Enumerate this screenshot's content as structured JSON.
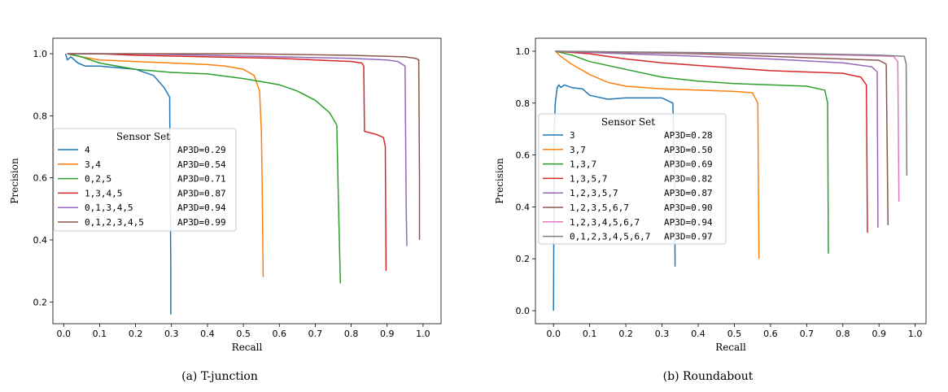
{
  "chart_data": [
    {
      "type": "line",
      "caption": "(a) T-junction",
      "xlabel": "Recall",
      "ylabel": "Precision",
      "xlim": [
        -0.03,
        1.05
      ],
      "ylim": [
        0.13,
        1.05
      ],
      "xticks": [
        "0.0",
        "0.1",
        "0.2",
        "0.3",
        "0.4",
        "0.5",
        "0.6",
        "0.7",
        "0.8",
        "0.9",
        "1.0"
      ],
      "yticks": [
        "0.2",
        "0.4",
        "0.6",
        "0.8",
        "1.0"
      ],
      "legend": {
        "title": "Sensor Set",
        "placement": "center-left"
      },
      "series": [
        {
          "name": "4",
          "ap": "AP3D=0.29",
          "color": "#1f77b4",
          "points": [
            [
              0.005,
              1.0
            ],
            [
              0.01,
              0.98
            ],
            [
              0.02,
              0.99
            ],
            [
              0.04,
              0.97
            ],
            [
              0.06,
              0.96
            ],
            [
              0.1,
              0.96
            ],
            [
              0.15,
              0.955
            ],
            [
              0.2,
              0.95
            ],
            [
              0.25,
              0.93
            ],
            [
              0.28,
              0.89
            ],
            [
              0.295,
              0.86
            ],
            [
              0.298,
              0.3
            ],
            [
              0.298,
              0.16
            ]
          ]
        },
        {
          "name": "3,4",
          "ap": "AP3D=0.54",
          "color": "#ff7f0e",
          "points": [
            [
              0.01,
              1.0
            ],
            [
              0.05,
              0.99
            ],
            [
              0.1,
              0.98
            ],
            [
              0.2,
              0.975
            ],
            [
              0.3,
              0.97
            ],
            [
              0.4,
              0.965
            ],
            [
              0.45,
              0.96
            ],
            [
              0.5,
              0.95
            ],
            [
              0.53,
              0.93
            ],
            [
              0.545,
              0.88
            ],
            [
              0.55,
              0.75
            ],
            [
              0.552,
              0.6
            ],
            [
              0.555,
              0.28
            ]
          ]
        },
        {
          "name": "0,2,5",
          "ap": "AP3D=0.71",
          "color": "#2ca02c",
          "points": [
            [
              0.01,
              1.0
            ],
            [
              0.05,
              0.99
            ],
            [
              0.1,
              0.97
            ],
            [
              0.2,
              0.95
            ],
            [
              0.3,
              0.94
            ],
            [
              0.4,
              0.935
            ],
            [
              0.5,
              0.92
            ],
            [
              0.55,
              0.91
            ],
            [
              0.6,
              0.9
            ],
            [
              0.65,
              0.88
            ],
            [
              0.7,
              0.85
            ],
            [
              0.74,
              0.81
            ],
            [
              0.76,
              0.77
            ],
            [
              0.765,
              0.5
            ],
            [
              0.77,
              0.26
            ]
          ]
        },
        {
          "name": "1,3,4,5",
          "ap": "AP3D=0.87",
          "color": "#d62728",
          "points": [
            [
              0.01,
              1.0
            ],
            [
              0.1,
              1.0
            ],
            [
              0.2,
              0.995
            ],
            [
              0.4,
              0.99
            ],
            [
              0.6,
              0.985
            ],
            [
              0.7,
              0.98
            ],
            [
              0.8,
              0.975
            ],
            [
              0.83,
              0.97
            ],
            [
              0.835,
              0.96
            ],
            [
              0.837,
              0.75
            ],
            [
              0.87,
              0.74
            ],
            [
              0.89,
              0.73
            ],
            [
              0.895,
              0.7
            ],
            [
              0.897,
              0.3
            ]
          ]
        },
        {
          "name": "0,1,3,4,5",
          "ap": "AP3D=0.94",
          "color": "#9467bd",
          "points": [
            [
              0.01,
              1.0
            ],
            [
              0.2,
              1.0
            ],
            [
              0.4,
              0.995
            ],
            [
              0.6,
              0.99
            ],
            [
              0.8,
              0.985
            ],
            [
              0.9,
              0.98
            ],
            [
              0.93,
              0.975
            ],
            [
              0.95,
              0.96
            ],
            [
              0.953,
              0.5
            ],
            [
              0.955,
              0.38
            ]
          ]
        },
        {
          "name": "0,1,2,3,4,5",
          "ap": "AP3D=0.99",
          "color": "#8c564b",
          "points": [
            [
              0.01,
              1.0
            ],
            [
              0.5,
              1.0
            ],
            [
              0.8,
              0.995
            ],
            [
              0.95,
              0.99
            ],
            [
              0.98,
              0.985
            ],
            [
              0.988,
              0.98
            ],
            [
              0.99,
              0.6
            ],
            [
              0.99,
              0.4
            ]
          ]
        }
      ]
    },
    {
      "type": "line",
      "caption": "(b) Roundabout",
      "xlabel": "Recall",
      "ylabel": "Precision",
      "xlim": [
        -0.05,
        1.03
      ],
      "ylim": [
        -0.05,
        1.05
      ],
      "xticks": [
        "0.0",
        "0.1",
        "0.2",
        "0.3",
        "0.4",
        "0.5",
        "0.6",
        "0.7",
        "0.8",
        "0.9",
        "1.0"
      ],
      "yticks": [
        "0.0",
        "0.2",
        "0.4",
        "0.6",
        "0.8",
        "1.0"
      ],
      "legend": {
        "title": "Sensor Set",
        "placement": "center-left"
      },
      "series": [
        {
          "name": "3",
          "ap": "AP3D=0.28",
          "color": "#1f77b4",
          "points": [
            [
              0.0,
              0.0
            ],
            [
              0.002,
              0.7
            ],
            [
              0.005,
              0.8
            ],
            [
              0.01,
              0.86
            ],
            [
              0.015,
              0.87
            ],
            [
              0.02,
              0.86
            ],
            [
              0.03,
              0.87
            ],
            [
              0.05,
              0.86
            ],
            [
              0.08,
              0.855
            ],
            [
              0.1,
              0.83
            ],
            [
              0.15,
              0.815
            ],
            [
              0.2,
              0.82
            ],
            [
              0.25,
              0.82
            ],
            [
              0.3,
              0.82
            ],
            [
              0.33,
              0.8
            ],
            [
              0.335,
              0.5
            ],
            [
              0.336,
              0.17
            ]
          ]
        },
        {
          "name": "3,7",
          "ap": "AP3D=0.50",
          "color": "#ff7f0e",
          "points": [
            [
              0.005,
              1.0
            ],
            [
              0.02,
              0.98
            ],
            [
              0.05,
              0.95
            ],
            [
              0.1,
              0.91
            ],
            [
              0.15,
              0.88
            ],
            [
              0.2,
              0.865
            ],
            [
              0.3,
              0.855
            ],
            [
              0.4,
              0.85
            ],
            [
              0.5,
              0.845
            ],
            [
              0.55,
              0.84
            ],
            [
              0.565,
              0.8
            ],
            [
              0.568,
              0.2
            ]
          ]
        },
        {
          "name": "1,3,7",
          "ap": "AP3D=0.69",
          "color": "#2ca02c",
          "points": [
            [
              0.005,
              1.0
            ],
            [
              0.05,
              0.985
            ],
            [
              0.1,
              0.96
            ],
            [
              0.2,
              0.93
            ],
            [
              0.3,
              0.9
            ],
            [
              0.4,
              0.885
            ],
            [
              0.5,
              0.875
            ],
            [
              0.6,
              0.87
            ],
            [
              0.7,
              0.865
            ],
            [
              0.75,
              0.85
            ],
            [
              0.758,
              0.8
            ],
            [
              0.76,
              0.22
            ]
          ]
        },
        {
          "name": "1,3,5,7",
          "ap": "AP3D=0.82",
          "color": "#d62728",
          "points": [
            [
              0.005,
              1.0
            ],
            [
              0.1,
              0.99
            ],
            [
              0.2,
              0.97
            ],
            [
              0.3,
              0.955
            ],
            [
              0.4,
              0.945
            ],
            [
              0.5,
              0.935
            ],
            [
              0.6,
              0.925
            ],
            [
              0.7,
              0.92
            ],
            [
              0.8,
              0.915
            ],
            [
              0.85,
              0.9
            ],
            [
              0.865,
              0.87
            ],
            [
              0.868,
              0.3
            ]
          ]
        },
        {
          "name": "1,2,3,5,7",
          "ap": "AP3D=0.87",
          "color": "#9467bd",
          "points": [
            [
              0.005,
              1.0
            ],
            [
              0.2,
              0.99
            ],
            [
              0.4,
              0.98
            ],
            [
              0.6,
              0.97
            ],
            [
              0.8,
              0.955
            ],
            [
              0.88,
              0.94
            ],
            [
              0.895,
              0.92
            ],
            [
              0.897,
              0.32
            ]
          ]
        },
        {
          "name": "1,2,3,5,6,7",
          "ap": "AP3D=0.90",
          "color": "#8c564b",
          "points": [
            [
              0.005,
              1.0
            ],
            [
              0.2,
              0.995
            ],
            [
              0.4,
              0.99
            ],
            [
              0.6,
              0.98
            ],
            [
              0.8,
              0.97
            ],
            [
              0.9,
              0.965
            ],
            [
              0.92,
              0.95
            ],
            [
              0.925,
              0.33
            ]
          ]
        },
        {
          "name": "1,2,3,4,5,6,7",
          "ap": "AP3D=0.94",
          "color": "#e377c2",
          "points": [
            [
              0.005,
              1.0
            ],
            [
              0.3,
              0.995
            ],
            [
              0.6,
              0.99
            ],
            [
              0.8,
              0.985
            ],
            [
              0.94,
              0.98
            ],
            [
              0.952,
              0.96
            ],
            [
              0.955,
              0.42
            ]
          ]
        },
        {
          "name": "0,1,2,3,4,5,6,7",
          "ap": "AP3D=0.97",
          "color": "#7f7f7f",
          "points": [
            [
              0.005,
              1.0
            ],
            [
              0.4,
              0.995
            ],
            [
              0.7,
              0.99
            ],
            [
              0.9,
              0.985
            ],
            [
              0.97,
              0.98
            ],
            [
              0.975,
              0.95
            ],
            [
              0.977,
              0.52
            ]
          ]
        }
      ]
    }
  ]
}
